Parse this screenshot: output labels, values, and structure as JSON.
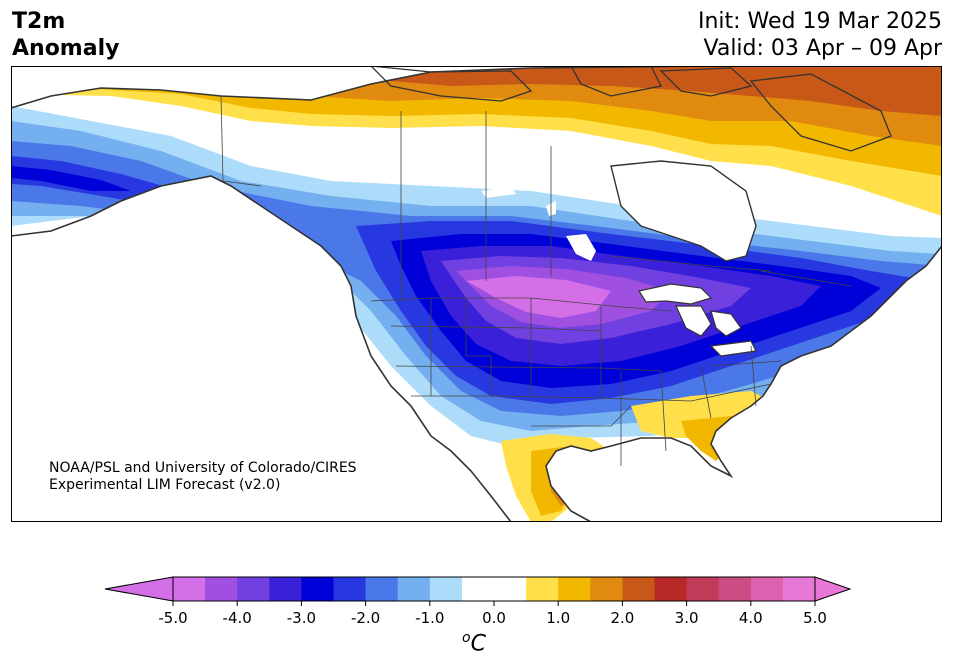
{
  "header": {
    "title_line1": "T2m",
    "title_line2": "Anomaly",
    "init": "Init: Wed 19 Mar 2025",
    "valid": "Valid: 03 Apr – 09 Apr"
  },
  "credit": {
    "line1": "NOAA/PSL and University of Colorado/CIRES",
    "line2": "Experimental LIM Forecast (v2.0)"
  },
  "colorbar": {
    "tick_labels": [
      "-5.0",
      "-4.0",
      "-3.0",
      "-2.0",
      "-1.0",
      "0.0",
      "1.0",
      "2.0",
      "3.0",
      "4.0",
      "5.0"
    ],
    "levels": [
      -5.0,
      -4.5,
      -4.0,
      -3.5,
      -3.0,
      -2.5,
      -2.0,
      -1.5,
      -1.0,
      -0.5,
      0.5,
      1.0,
      1.5,
      2.0,
      2.5,
      3.0,
      3.5,
      4.0,
      4.5,
      5.0
    ],
    "colors": [
      "#d46fe8",
      "#a050e0",
      "#7040e0",
      "#3a20d8",
      "#0000d8",
      "#2838e0",
      "#4a78e8",
      "#74b0f0",
      "#acdcfa",
      "#ffffff",
      "#ffe04a",
      "#f2b800",
      "#e08a10",
      "#c85818",
      "#b82828",
      "#c03c58",
      "#cc4c84",
      "#dc62b0",
      "#e878d8"
    ],
    "under_color": "#d46fe8",
    "over_color": "#e878d8",
    "unit_main": "C",
    "unit_sup": "o"
  },
  "map": {
    "region": "North America",
    "ocean_color": "#ffffff",
    "border_color": "#333333"
  }
}
